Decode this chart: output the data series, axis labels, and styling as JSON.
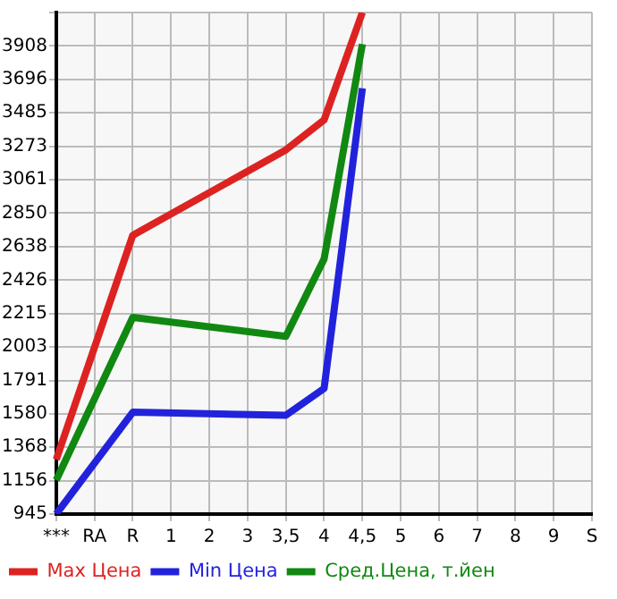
{
  "chart_data": {
    "type": "line",
    "categories": [
      "***",
      "RA",
      "R",
      "1",
      "2",
      "3",
      "3,5",
      "4",
      "4,5",
      "5",
      "6",
      "7",
      "8",
      "9",
      "S"
    ],
    "series": [
      {
        "name": "Max Цена",
        "color": "#dd2222",
        "values": [
          1290,
          null,
          2710,
          null,
          null,
          null,
          3250,
          3440,
          4120,
          null,
          null,
          null,
          null,
          null,
          null
        ]
      },
      {
        "name": "Min Цена",
        "color": "#2222dd",
        "values": [
          945,
          null,
          1590,
          null,
          null,
          null,
          1570,
          1740,
          3640,
          null,
          null,
          null,
          null,
          null,
          null
        ]
      },
      {
        "name": "Сред.Цена, т.йен",
        "color": "#118811",
        "values": [
          1160,
          null,
          2190,
          null,
          null,
          null,
          2070,
          2560,
          3920,
          null,
          null,
          null,
          null,
          null,
          null
        ]
      }
    ],
    "ylim": [
      945,
      4120
    ],
    "yticks": [
      945,
      1156,
      1368,
      1580,
      1791,
      2003,
      2215,
      2426,
      2638,
      2850,
      3061,
      3273,
      3485,
      3696,
      3908,
      {
        "value": 4120,
        "label": null
      }
    ],
    "grid": true,
    "legend": "bottom",
    "marker": "none"
  }
}
